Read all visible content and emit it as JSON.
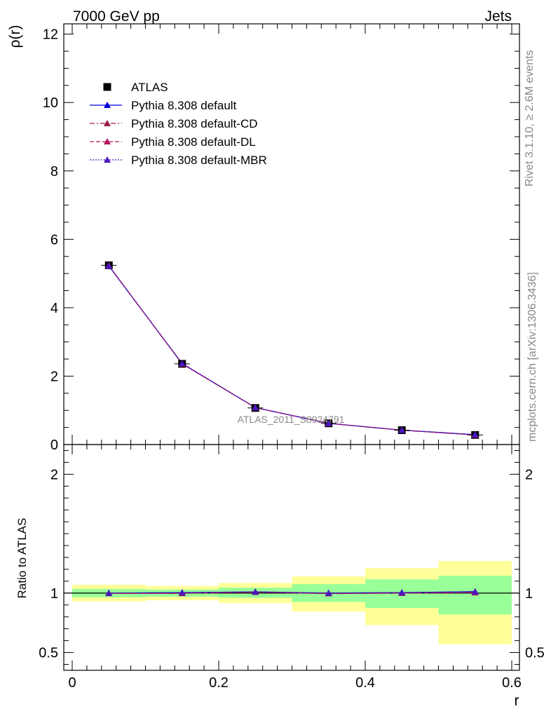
{
  "header": {
    "left": "7000 GeV pp",
    "right": "Jets"
  },
  "side_labels": {
    "rivet": "Rivet 3.1.10, ≥ 2.6M events",
    "mcplots": "mcplots.cern.ch [arXiv:1306.3436]"
  },
  "watermark": "ATLAS_2011_S8924791",
  "chart_data": [
    {
      "type": "line",
      "panel": "main",
      "ylabel": "ρ(r)",
      "xlim": [
        0,
        0.6
      ],
      "ylim": [
        0,
        12.3
      ],
      "yticks": [
        0,
        2,
        4,
        6,
        8,
        10,
        12
      ],
      "ytick_labels": [
        "0",
        "2",
        "4",
        "6",
        "8",
        "10",
        "12"
      ],
      "legend": "top-left",
      "x": [
        0.05,
        0.15,
        0.25,
        0.35,
        0.45,
        0.55
      ],
      "series": [
        {
          "name": "ATLAS",
          "marker": "square",
          "color": "#000000",
          "line": "none",
          "values": [
            5.24,
            2.36,
            1.07,
            0.62,
            0.42,
            0.28
          ]
        },
        {
          "name": "Pythia 8.308 default",
          "marker": "triangle",
          "color": "#0000dd",
          "line": "solid",
          "values": [
            5.22,
            2.37,
            1.08,
            0.62,
            0.42,
            0.29
          ]
        },
        {
          "name": "Pythia 8.308 default-CD",
          "marker": "triangle",
          "color": "#9b1b48",
          "line": "dashdot",
          "values": [
            5.23,
            2.36,
            1.08,
            0.62,
            0.42,
            0.28
          ]
        },
        {
          "name": "Pythia 8.308 default-DL",
          "marker": "triangle",
          "color": "#b0155e",
          "line": "dashed",
          "values": [
            5.23,
            2.36,
            1.08,
            0.62,
            0.42,
            0.28
          ]
        },
        {
          "name": "Pythia 8.308 default-MBR",
          "marker": "triangle",
          "color": "#4a16c0",
          "line": "dotted",
          "values": [
            5.22,
            2.37,
            1.08,
            0.62,
            0.42,
            0.29
          ]
        }
      ]
    },
    {
      "type": "line",
      "panel": "ratio",
      "ylabel": "Ratio to ATLAS",
      "xlabel": "r",
      "xlim": [
        0,
        0.6
      ],
      "ylim": [
        0.35,
        2.25
      ],
      "xticks": [
        0,
        0.2,
        0.4,
        0.6
      ],
      "xtick_labels": [
        "0",
        "0.2",
        "0.4",
        "0.6"
      ],
      "yticks": [
        0.5,
        1,
        2
      ],
      "ytick_labels": [
        "0.5",
        "1",
        "2"
      ],
      "bins": [
        [
          0.0,
          0.1
        ],
        [
          0.1,
          0.2
        ],
        [
          0.2,
          0.3
        ],
        [
          0.3,
          0.4
        ],
        [
          0.4,
          0.5
        ],
        [
          0.5,
          0.6
        ]
      ],
      "band_yellow": [
        [
          0.93,
          1.07
        ],
        [
          0.94,
          1.06
        ],
        [
          0.915,
          1.085
        ],
        [
          0.845,
          1.14
        ],
        [
          0.73,
          1.21
        ],
        [
          0.57,
          1.27
        ]
      ],
      "band_green": [
        [
          0.965,
          1.035
        ],
        [
          0.97,
          1.03
        ],
        [
          0.96,
          1.045
        ],
        [
          0.925,
          1.075
        ],
        [
          0.875,
          1.115
        ],
        [
          0.82,
          1.145
        ]
      ],
      "x": [
        0.05,
        0.15,
        0.25,
        0.35,
        0.45,
        0.55
      ],
      "series": [
        {
          "name": "Pythia 8.308 default",
          "color": "#0000dd",
          "line": "solid",
          "values": [
            1.0,
            1.004,
            1.01,
            1.0,
            1.004,
            1.012
          ]
        },
        {
          "name": "Pythia 8.308 default-CD",
          "color": "#9b1b48",
          "line": "dashdot",
          "values": [
            0.998,
            0.998,
            1.008,
            0.996,
            1.0,
            1.004
          ]
        },
        {
          "name": "Pythia 8.308 default-DL",
          "color": "#b0155e",
          "line": "dashed",
          "values": [
            0.998,
            0.998,
            1.008,
            0.996,
            1.0,
            1.004
          ]
        },
        {
          "name": "Pythia 8.308 default-MBR",
          "color": "#4a16c0",
          "line": "dotted",
          "values": [
            1.0,
            1.004,
            1.01,
            1.0,
            1.004,
            1.012
          ]
        }
      ]
    }
  ]
}
